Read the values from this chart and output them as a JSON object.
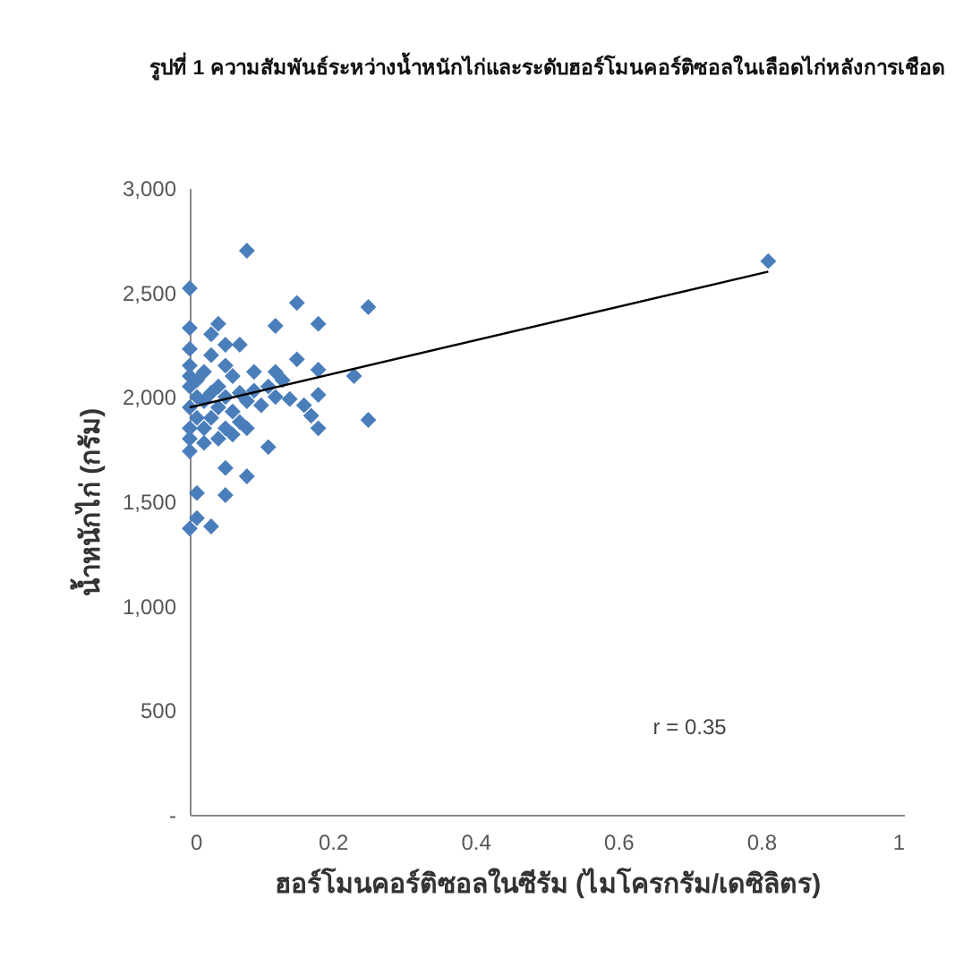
{
  "chart_data": {
    "type": "scatter",
    "title": "รูปที่ 1 ความสัมพันธ์ระหว่างน้ำหนักไก่และระดับฮอร์โมนคอร์ติซอลในเลือดไก่หลังการเชือด",
    "xlabel": "ฮอร์โมนคอร์ติซอลในซีรัม (ไมโครกรัม/เดซิลิตร)",
    "ylabel": "น้ำหนักไก่ (กรัม)",
    "annotations": [
      "r = 0.35"
    ],
    "xlim": [
      0,
      1
    ],
    "xticks": [
      {
        "value": 0,
        "label": "0"
      },
      0.2,
      0.4,
      0.6,
      0.8,
      {
        "value": 1,
        "label": "1"
      }
    ],
    "ylim": [
      0,
      3000
    ],
    "yticks": [
      {
        "value": 0,
        "label": "-"
      },
      {
        "value": 500,
        "label": "500"
      },
      {
        "value": 1000,
        "label": "1,000"
      },
      {
        "value": 1500,
        "label": "1,500"
      },
      {
        "value": 2000,
        "label": "2,000"
      },
      {
        "value": 2500,
        "label": "2,500"
      },
      {
        "value": 3000,
        "label": "3,000"
      }
    ],
    "grid": false,
    "series": [
      {
        "color": "#4a7ebb",
        "marker": "diamond",
        "x": [
          0.81,
          0.08,
          0,
          0.15,
          0.25,
          0.12,
          0.18,
          0.04,
          0,
          0.03,
          0.07,
          0.05,
          0.15,
          0.18,
          0.23,
          0.09,
          0.12,
          0.18,
          0.16,
          0.17,
          0.25,
          0.18,
          0.11,
          0,
          0.05,
          0.08,
          0.01,
          0.05,
          0,
          0.03,
          0.01,
          0,
          0,
          0,
          0,
          0,
          0.01,
          0.01,
          0.01,
          0.02,
          0.02,
          0.02,
          0.03,
          0.03,
          0.04,
          0.04,
          0.05,
          0.05,
          0.06,
          0.06,
          0.07,
          0.07,
          0.08,
          0.09,
          0.1,
          0.11,
          0.12,
          0.13,
          0.14,
          0.02,
          0.04,
          0.06,
          0.08,
          0,
          0,
          0.03,
          0.05
        ],
        "values": [
          2650,
          2700,
          2520,
          2450,
          2430,
          2340,
          2350,
          2350,
          2330,
          2300,
          2250,
          2250,
          2180,
          2130,
          2100,
          2120,
          2120,
          2010,
          1960,
          1910,
          1890,
          1850,
          1760,
          1740,
          1660,
          1620,
          1540,
          1530,
          1370,
          1380,
          1420,
          2050,
          1950,
          1850,
          2150,
          2100,
          2000,
          1900,
          2080,
          1980,
          1850,
          2120,
          2020,
          1900,
          2050,
          1950,
          2000,
          1850,
          2100,
          1930,
          2020,
          1880,
          1980,
          2030,
          1960,
          2050,
          2000,
          2080,
          1990,
          1780,
          1800,
          1820,
          1850,
          1800,
          2230,
          2200,
          2150
        ]
      },
      {
        "type": "line",
        "color": "#000000",
        "x": [
          0,
          0.81
        ],
        "values": [
          1950,
          2600
        ]
      }
    ]
  }
}
